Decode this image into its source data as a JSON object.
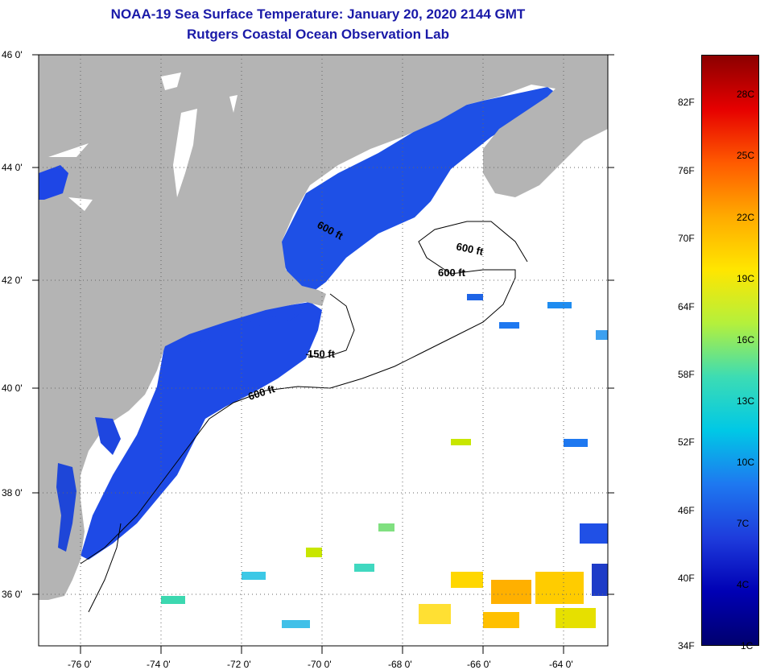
{
  "header": {
    "title_line1": "NOAA-19 Sea Surface Temperature:  January 20, 2020 2144 GMT",
    "title_line2": "Rutgers Coastal Ocean Observation Lab"
  },
  "map": {
    "latitude_labels": [
      "46 0'",
      "44 0'",
      "42 0'",
      "40 0'",
      "38 0'",
      "36 0'"
    ],
    "longitude_labels": [
      "-76 0'",
      "-74 0'",
      "-72 0'",
      "-70 0'",
      "-68 0'",
      "-66 0'",
      "-64 0'"
    ],
    "contour_labels": [
      "600 ft",
      "600 ft",
      "600 ft",
      "150 ft",
      "600 ft"
    ],
    "land_color": "#b4b4b4",
    "cloud_color": "#ffffff",
    "coastal_water_color": "#1e46e6"
  },
  "colorbar": {
    "fahrenheit_labels": [
      "82F",
      "76F",
      "70F",
      "64F",
      "58F",
      "52F",
      "46F",
      "40F",
      "34F"
    ],
    "celsius_labels": [
      "28C",
      "25C",
      "22C",
      "19C",
      "16C",
      "13C",
      "10C",
      "7C",
      "4C",
      "1C"
    ],
    "gradient_stops": [
      "#8b0000",
      "#e60000",
      "#ff5a00",
      "#ffaa00",
      "#ffe600",
      "#b4f03c",
      "#3cdcb4",
      "#00c8e6",
      "#1e78f0",
      "#1e3cdc",
      "#0000b4",
      "#00006e"
    ]
  }
}
